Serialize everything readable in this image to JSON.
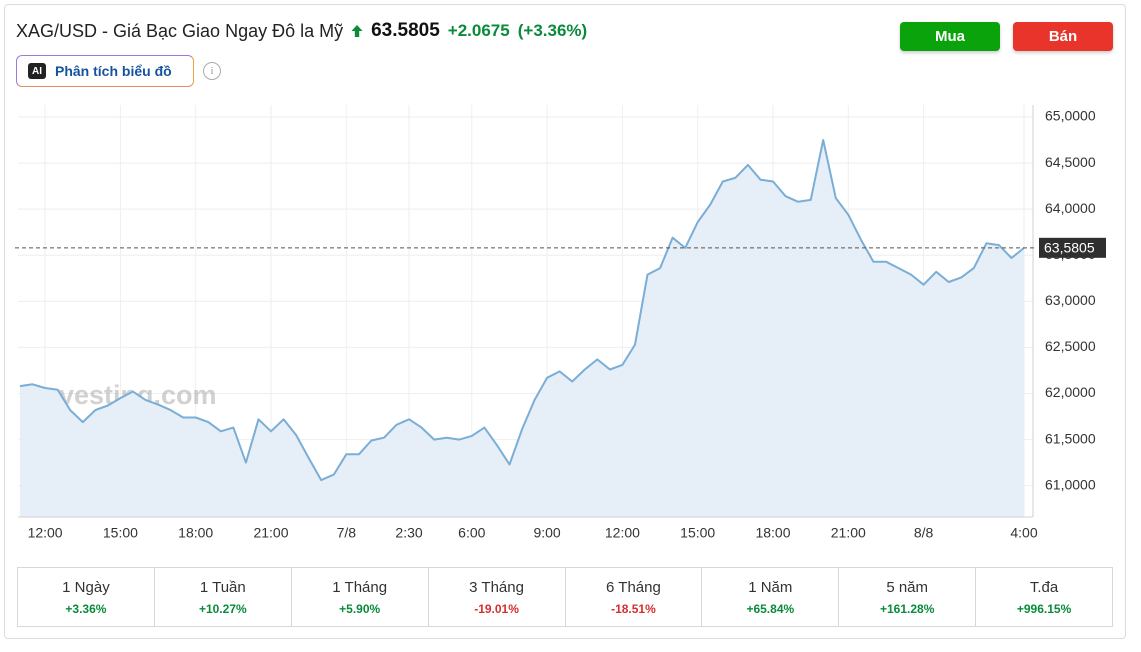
{
  "header": {
    "title": "XAG/USD - Giá Bạc Giao Ngay Đô la Mỹ",
    "price": "63.5805",
    "change": "+2.0675",
    "change_percent": "(+3.36%)"
  },
  "buttons": {
    "buy": "Mua",
    "sell": "Bán"
  },
  "ai_button": {
    "icon": "AI",
    "label": "Phân tích biểu đồ"
  },
  "chart_data": {
    "type": "area",
    "color": "#7aaed6",
    "fill": "#e6eef7",
    "watermark": "Investing.com",
    "categories": [
      null,
      null,
      "12:00",
      null,
      null,
      null,
      null,
      null,
      "15:00",
      null,
      null,
      null,
      null,
      null,
      "18:00",
      null,
      null,
      null,
      null,
      null,
      "21:00",
      null,
      null,
      null,
      null,
      null,
      "7/8",
      null,
      null,
      null,
      null,
      "2:30",
      null,
      null,
      null,
      null,
      "6:00",
      null,
      null,
      null,
      null,
      null,
      "9:00",
      null,
      null,
      null,
      null,
      null,
      "12:00",
      null,
      null,
      null,
      null,
      null,
      "15:00",
      null,
      null,
      null,
      null,
      null,
      "18:00",
      null,
      null,
      null,
      null,
      null,
      "21:00",
      null,
      null,
      null,
      null,
      null,
      "8/8",
      null,
      null,
      null,
      null,
      null,
      null,
      null,
      "4:00"
    ],
    "values": [
      62.08,
      62.1,
      62.06,
      62.04,
      61.82,
      61.69,
      61.82,
      61.87,
      61.95,
      62.02,
      61.93,
      61.88,
      61.82,
      61.74,
      61.74,
      61.69,
      61.59,
      61.63,
      61.25,
      61.72,
      61.59,
      61.72,
      61.55,
      61.3,
      61.06,
      61.12,
      61.34,
      61.34,
      61.49,
      61.52,
      61.66,
      61.72,
      61.63,
      61.5,
      61.52,
      61.5,
      61.54,
      61.63,
      61.44,
      61.23,
      61.61,
      61.93,
      62.17,
      62.24,
      62.13,
      62.26,
      62.37,
      62.26,
      62.31,
      62.53,
      63.29,
      63.36,
      63.69,
      63.58,
      63.86,
      64.05,
      64.3,
      64.34,
      64.48,
      64.32,
      64.3,
      64.14,
      64.08,
      64.1,
      64.75,
      64.12,
      63.94,
      63.67,
      63.43,
      63.43,
      63.36,
      63.29,
      63.18,
      63.32,
      63.21,
      63.26,
      63.36,
      63.63,
      63.61,
      63.47,
      63.58
    ],
    "ylim": [
      60.66,
      65.13
    ],
    "yticks": [
      {
        "value": 61,
        "label": "61,0000"
      },
      {
        "value": 61.5,
        "label": "61,5000"
      },
      {
        "value": 62,
        "label": "62,0000"
      },
      {
        "value": 62.5,
        "label": "62,5000"
      },
      {
        "value": 63,
        "label": "63,0000"
      },
      {
        "value": 63.5,
        "label": "63,5000"
      },
      {
        "value": 64,
        "label": "64,0000"
      },
      {
        "value": 64.5,
        "label": "64,5000"
      },
      {
        "value": 65,
        "label": "65,0000"
      }
    ],
    "current_price": {
      "value": 63.5805,
      "label": "63,5805"
    },
    "grid": true
  },
  "periods": [
    {
      "label": "1 Ngày",
      "change": "+3.36%"
    },
    {
      "label": "1 Tuần",
      "change": "+10.27%"
    },
    {
      "label": "1 Tháng",
      "change": "+5.90%"
    },
    {
      "label": "3 Tháng",
      "change": "-19.01%"
    },
    {
      "label": "6 Tháng",
      "change": "-18.51%"
    },
    {
      "label": "1 Năm",
      "change": "+65.84%"
    },
    {
      "label": "5 năm",
      "change": "+161.28%"
    },
    {
      "label": "T.đa",
      "change": "+996.15%"
    }
  ]
}
